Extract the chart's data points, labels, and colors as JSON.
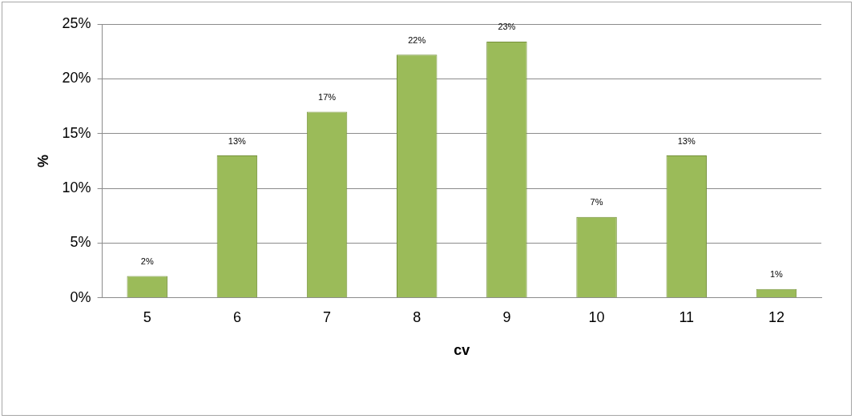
{
  "chart_data": {
    "type": "bar",
    "xlabel": "cv",
    "ylabel": "%",
    "categories": [
      "5",
      "6",
      "7",
      "8",
      "9",
      "10",
      "11",
      "12"
    ],
    "values": [
      2,
      13,
      17,
      22.2,
      23.4,
      7.4,
      13,
      0.8
    ],
    "value_labels": [
      "2%",
      "13%",
      "17%",
      "22%",
      "23%",
      "7%",
      "13%",
      "1%"
    ],
    "color": "#9bbb59",
    "ylim": [
      0,
      25
    ],
    "yticks": [
      {
        "value": 0,
        "label": "0%"
      },
      {
        "value": 5,
        "label": "5%"
      },
      {
        "value": 10,
        "label": "10%"
      },
      {
        "value": 15,
        "label": "15%"
      },
      {
        "value": 20,
        "label": "20%"
      },
      {
        "value": 25,
        "label": "25%"
      }
    ],
    "grid": "y",
    "legend": false
  }
}
